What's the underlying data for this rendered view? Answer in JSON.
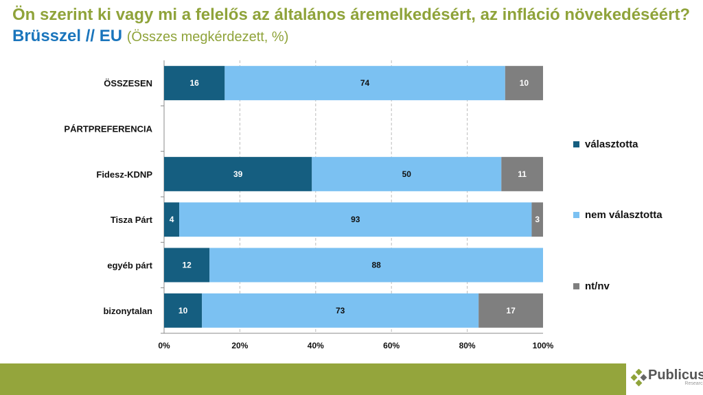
{
  "title": {
    "main": "Ön szerint ki vagy mi a felelős az általános áremelkedésért, az infláció növekedéséért?",
    "highlight": "Brüsszel // EU",
    "sub": "(Összes megkérdezett, %)"
  },
  "chart_data": {
    "type": "bar",
    "orientation": "horizontal",
    "stacked": true,
    "categories": [
      "ÖSSZESEN",
      "PÁRTPREFERENCIA",
      "Fidesz-KDNP",
      "Tisza Párt",
      "egyéb párt",
      "bizonytalan"
    ],
    "series": [
      {
        "name": "választotta",
        "color": "#155e80",
        "values": [
          16,
          null,
          39,
          4,
          12,
          10
        ]
      },
      {
        "name": "nem választotta",
        "color": "#7bc1f2",
        "values": [
          74,
          null,
          50,
          93,
          88,
          73
        ]
      },
      {
        "name": "nt/nv",
        "color": "#7f7f7f",
        "values": [
          10,
          null,
          11,
          3,
          null,
          17
        ]
      }
    ],
    "xticks": [
      "0%",
      "20%",
      "40%",
      "60%",
      "80%",
      "100%"
    ],
    "xlim": [
      0,
      100
    ],
    "grid": "vertical dashed",
    "legend_position": "right"
  },
  "logo": {
    "name": "Publicus",
    "sub": "Research"
  }
}
